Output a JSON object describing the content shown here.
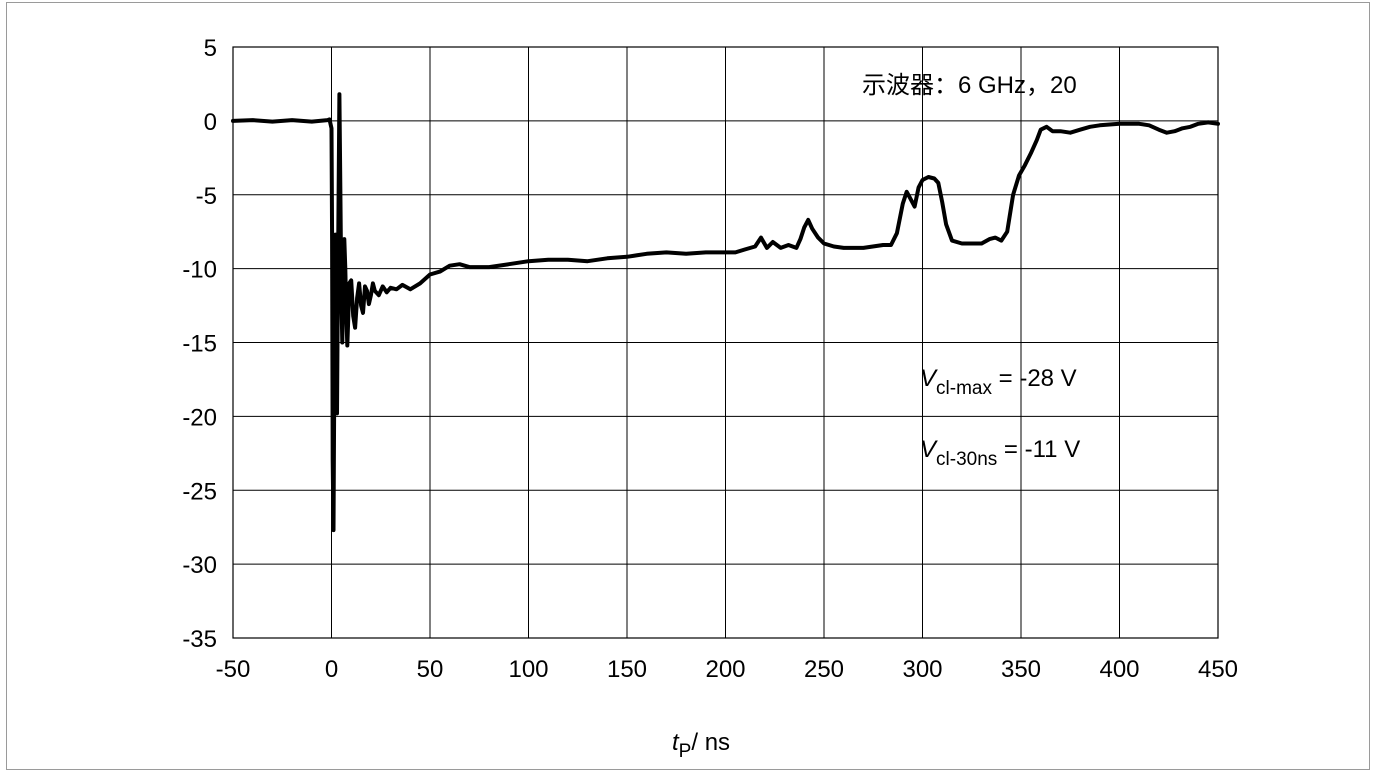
{
  "chart_data": {
    "type": "line",
    "title": "",
    "xlabel": {
      "var": "t",
      "sub": "P",
      "unit": "/ ns"
    },
    "ylabel": "",
    "xlim": [
      -50,
      450
    ],
    "ylim": [
      -35,
      5
    ],
    "x_ticks": [
      -50,
      0,
      50,
      100,
      150,
      200,
      250,
      300,
      350,
      400,
      450
    ],
    "y_ticks": [
      5,
      0,
      -5,
      -10,
      -15,
      -20,
      -25,
      -30,
      -35
    ],
    "grid": true,
    "legend": "none",
    "annotations": [
      {
        "text": "示波器：6 GHz，20"
      },
      {
        "var": "V",
        "sub": "cl-max",
        "rest": " = -28 V"
      },
      {
        "var": "V",
        "sub": "cl-30ns",
        "rest": " = -11 V"
      }
    ],
    "series": [
      {
        "color": "#000000",
        "points": [
          [
            -50,
            0
          ],
          [
            -40,
            0.05
          ],
          [
            -30,
            -0.05
          ],
          [
            -20,
            0.05
          ],
          [
            -10,
            -0.05
          ],
          [
            -2,
            0.05
          ],
          [
            -1,
            0.1
          ],
          [
            0,
            -0.5
          ],
          [
            0.3,
            -8
          ],
          [
            0.6,
            -23
          ],
          [
            1,
            -27.7
          ],
          [
            1.3,
            -20
          ],
          [
            1.6,
            -12
          ],
          [
            2,
            -7.7
          ],
          [
            2.4,
            -12
          ],
          [
            2.8,
            -19.8
          ],
          [
            3.2,
            -12
          ],
          [
            3.6,
            -5
          ],
          [
            4,
            1.8
          ],
          [
            4.5,
            -5
          ],
          [
            5,
            -12
          ],
          [
            5.5,
            -15
          ],
          [
            6,
            -11
          ],
          [
            6.5,
            -8
          ],
          [
            7,
            -10
          ],
          [
            7.5,
            -13
          ],
          [
            8,
            -15.2
          ],
          [
            8.5,
            -13.5
          ],
          [
            9,
            -11
          ],
          [
            10,
            -10.8
          ],
          [
            11,
            -13.2
          ],
          [
            12,
            -14
          ],
          [
            13,
            -12
          ],
          [
            14,
            -11
          ],
          [
            15,
            -12.5
          ],
          [
            16,
            -13
          ],
          [
            17,
            -11.2
          ],
          [
            18,
            -11.5
          ],
          [
            19,
            -12.4
          ],
          [
            20,
            -11.8
          ],
          [
            21,
            -11
          ],
          [
            22,
            -11.5
          ],
          [
            24,
            -11.8
          ],
          [
            26,
            -11.2
          ],
          [
            28,
            -11.6
          ],
          [
            30,
            -11.3
          ],
          [
            33,
            -11.4
          ],
          [
            36,
            -11.1
          ],
          [
            40,
            -11.4
          ],
          [
            45,
            -11
          ],
          [
            50,
            -10.4
          ],
          [
            55,
            -10.2
          ],
          [
            60,
            -9.8
          ],
          [
            65,
            -9.7
          ],
          [
            70,
            -9.9
          ],
          [
            80,
            -9.9
          ],
          [
            90,
            -9.7
          ],
          [
            100,
            -9.5
          ],
          [
            110,
            -9.4
          ],
          [
            120,
            -9.4
          ],
          [
            130,
            -9.5
          ],
          [
            140,
            -9.3
          ],
          [
            150,
            -9.2
          ],
          [
            160,
            -9.0
          ],
          [
            170,
            -8.9
          ],
          [
            180,
            -9.0
          ],
          [
            190,
            -8.9
          ],
          [
            200,
            -8.9
          ],
          [
            205,
            -8.9
          ],
          [
            210,
            -8.7
          ],
          [
            215,
            -8.5
          ],
          [
            218,
            -7.9
          ],
          [
            221,
            -8.6
          ],
          [
            224,
            -8.2
          ],
          [
            228,
            -8.6
          ],
          [
            232,
            -8.4
          ],
          [
            236,
            -8.6
          ],
          [
            238,
            -8.0
          ],
          [
            240,
            -7.2
          ],
          [
            242,
            -6.7
          ],
          [
            244,
            -7.3
          ],
          [
            247,
            -7.9
          ],
          [
            250,
            -8.3
          ],
          [
            255,
            -8.5
          ],
          [
            260,
            -8.6
          ],
          [
            270,
            -8.6
          ],
          [
            280,
            -8.4
          ],
          [
            284,
            -8.4
          ],
          [
            287,
            -7.6
          ],
          [
            290,
            -5.6
          ],
          [
            292,
            -4.8
          ],
          [
            294,
            -5.3
          ],
          [
            296,
            -5.8
          ],
          [
            298,
            -4.5
          ],
          [
            300,
            -4.0
          ],
          [
            303,
            -3.8
          ],
          [
            306,
            -3.9
          ],
          [
            308,
            -4.2
          ],
          [
            310,
            -5.5
          ],
          [
            312,
            -7.0
          ],
          [
            315,
            -8.1
          ],
          [
            320,
            -8.3
          ],
          [
            325,
            -8.3
          ],
          [
            330,
            -8.3
          ],
          [
            334,
            -8.0
          ],
          [
            337,
            -7.9
          ],
          [
            340,
            -8.1
          ],
          [
            343,
            -7.5
          ],
          [
            346,
            -5.0
          ],
          [
            349,
            -3.7
          ],
          [
            352,
            -3.0
          ],
          [
            355,
            -2.2
          ],
          [
            358,
            -1.3
          ],
          [
            360,
            -0.6
          ],
          [
            363,
            -0.4
          ],
          [
            366,
            -0.7
          ],
          [
            370,
            -0.7
          ],
          [
            375,
            -0.8
          ],
          [
            380,
            -0.6
          ],
          [
            385,
            -0.4
          ],
          [
            390,
            -0.3
          ],
          [
            400,
            -0.2
          ],
          [
            410,
            -0.2
          ],
          [
            415,
            -0.3
          ],
          [
            420,
            -0.6
          ],
          [
            424,
            -0.8
          ],
          [
            428,
            -0.7
          ],
          [
            432,
            -0.5
          ],
          [
            436,
            -0.4
          ],
          [
            440,
            -0.2
          ],
          [
            445,
            -0.1
          ],
          [
            450,
            -0.2
          ]
        ]
      }
    ]
  }
}
